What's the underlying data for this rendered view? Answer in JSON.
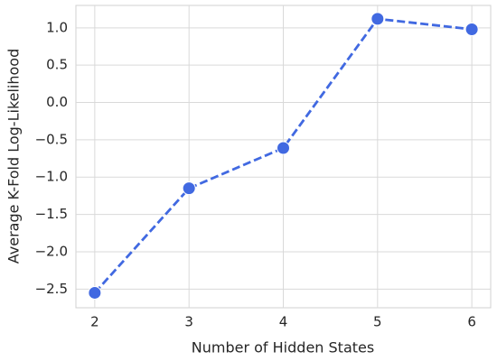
{
  "chart_data": {
    "type": "line",
    "x_label": "Number of Hidden States",
    "y_label": "Average K-Fold Log-Likelihood",
    "x": [
      2,
      3,
      4,
      5,
      6
    ],
    "series": [
      {
        "color": "#4169e1",
        "values": [
          -2.55,
          -1.15,
          -0.61,
          1.12,
          0.98
        ]
      }
    ],
    "xlim": [
      1.8,
      6.2
    ],
    "ylim": [
      -2.75,
      1.3
    ],
    "xticks": [
      2,
      3,
      4,
      5,
      6
    ],
    "yticks": [
      {
        "value": -2.5,
        "label": "−2.5"
      },
      {
        "value": -2.0,
        "label": "−2.0"
      },
      {
        "value": -1.5,
        "label": "−1.5"
      },
      {
        "value": -1.0,
        "label": "−1.0"
      },
      {
        "value": -0.5,
        "label": "−0.5"
      },
      {
        "value": 0.0,
        "label": "0.0"
      },
      {
        "value": 0.5,
        "label": "0.5"
      },
      {
        "value": 1.0,
        "label": "1.0"
      }
    ],
    "grid": true,
    "line_style": "dashed",
    "markers": true
  }
}
